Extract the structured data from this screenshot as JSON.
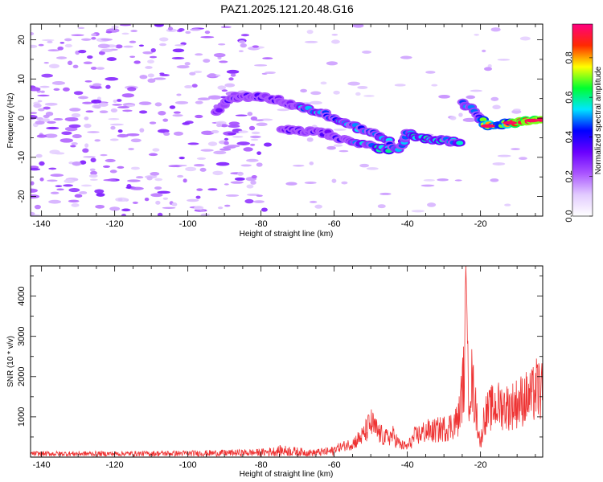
{
  "figure": {
    "title": "PAZ1.2025.121.20.48.G16"
  },
  "chart_data": [
    {
      "type": "heatmap",
      "xlabel": "Height of straight line (km)",
      "ylabel": "Frequency (Hz)",
      "xlim": [
        -143,
        -3
      ],
      "ylim": [
        -25,
        24
      ],
      "x_ticks": [
        -140,
        -120,
        -100,
        -80,
        -60,
        -40,
        -20
      ],
      "y_ticks": [
        -20,
        -10,
        0,
        10,
        20
      ],
      "colorbar": {
        "label": "Normalized spectral amplitude",
        "range": [
          0.0,
          0.97
        ],
        "ticks": [
          0.0,
          0.2,
          0.4,
          0.6,
          0.8
        ],
        "tick_labels": [
          "0.0",
          "0.2",
          "0.4",
          "0.6",
          "0.8"
        ],
        "colors": [
          "#ffffff",
          "#e2cbff",
          "#aa55ff",
          "#6a00ff",
          "#0000ff",
          "#00e5ff",
          "#00ff30",
          "#ffff00",
          "#ff2a00",
          "#ff0080"
        ]
      },
      "signal_track": {
        "upper_branch": [
          [
            -92,
            2
          ],
          [
            -88,
            5
          ],
          [
            -84,
            5.5
          ],
          [
            -80,
            5.5
          ],
          [
            -76,
            4.8
          ],
          [
            -72,
            3.5
          ],
          [
            -68,
            2.5
          ],
          [
            -64,
            1.5
          ],
          [
            -60,
            0
          ],
          [
            -56,
            -1.5
          ],
          [
            -52,
            -3
          ],
          [
            -48,
            -4.5
          ],
          [
            -44,
            -6.5
          ]
        ],
        "lower_branch": [
          [
            -74,
            -3
          ],
          [
            -70,
            -3.2
          ],
          [
            -66,
            -3.5
          ],
          [
            -62,
            -4
          ],
          [
            -58,
            -5.5
          ],
          [
            -54,
            -6.5
          ],
          [
            -50,
            -7
          ],
          [
            -46,
            -8
          ],
          [
            -42,
            -7.5
          ],
          [
            -40,
            -4
          ],
          [
            -36,
            -5
          ],
          [
            -32,
            -5.5
          ],
          [
            -28,
            -6
          ],
          [
            -25,
            -6
          ]
        ],
        "high_branch": [
          [
            -25,
            4
          ],
          [
            -22,
            2
          ],
          [
            -18,
            -2
          ],
          [
            -14,
            -1.5
          ],
          [
            -10,
            -1
          ],
          [
            -6,
            -0.5
          ],
          [
            -3,
            -0.5
          ]
        ],
        "peak_amplitude": 0.97
      }
    },
    {
      "type": "line",
      "xlabel": "Height of straight line (km)",
      "ylabel": "SNR (10 * v/v)",
      "xlim": [
        -143,
        -3
      ],
      "ylim": [
        0,
        4750
      ],
      "x_ticks": [
        -140,
        -120,
        -100,
        -80,
        -60,
        -40,
        -20
      ],
      "y_ticks": [
        1000,
        2000,
        3000,
        4000
      ],
      "series": [
        {
          "color": "#ee3333",
          "envelope": [
            {
              "x": -143,
              "y": 150
            },
            {
              "x": -120,
              "y": 150
            },
            {
              "x": -100,
              "y": 170
            },
            {
              "x": -80,
              "y": 220
            },
            {
              "x": -74,
              "y": 330
            },
            {
              "x": -66,
              "y": 200
            },
            {
              "x": -60,
              "y": 300
            },
            {
              "x": -55,
              "y": 500
            },
            {
              "x": -52,
              "y": 800
            },
            {
              "x": -50,
              "y": 1250
            },
            {
              "x": -48,
              "y": 900
            },
            {
              "x": -46,
              "y": 700
            },
            {
              "x": -44,
              "y": 800
            },
            {
              "x": -42,
              "y": 450
            },
            {
              "x": -40,
              "y": 380
            },
            {
              "x": -38,
              "y": 750
            },
            {
              "x": -35,
              "y": 950
            },
            {
              "x": -33,
              "y": 950
            },
            {
              "x": -30,
              "y": 1050
            },
            {
              "x": -28,
              "y": 1150
            },
            {
              "x": -26,
              "y": 1400
            },
            {
              "x": -24.5,
              "y": 3000
            },
            {
              "x": -24,
              "y": 4750
            },
            {
              "x": -23.3,
              "y": 2400
            },
            {
              "x": -22.5,
              "y": 2900
            },
            {
              "x": -21,
              "y": 1500
            },
            {
              "x": -20,
              "y": 450
            },
            {
              "x": -19,
              "y": 1500
            },
            {
              "x": -17,
              "y": 1800
            },
            {
              "x": -15,
              "y": 1900
            },
            {
              "x": -12,
              "y": 1850
            },
            {
              "x": -10,
              "y": 2000
            },
            {
              "x": -8,
              "y": 2150
            },
            {
              "x": -6,
              "y": 2200
            },
            {
              "x": -4.5,
              "y": 2550
            },
            {
              "x": -3,
              "y": 2300
            }
          ]
        }
      ]
    }
  ]
}
